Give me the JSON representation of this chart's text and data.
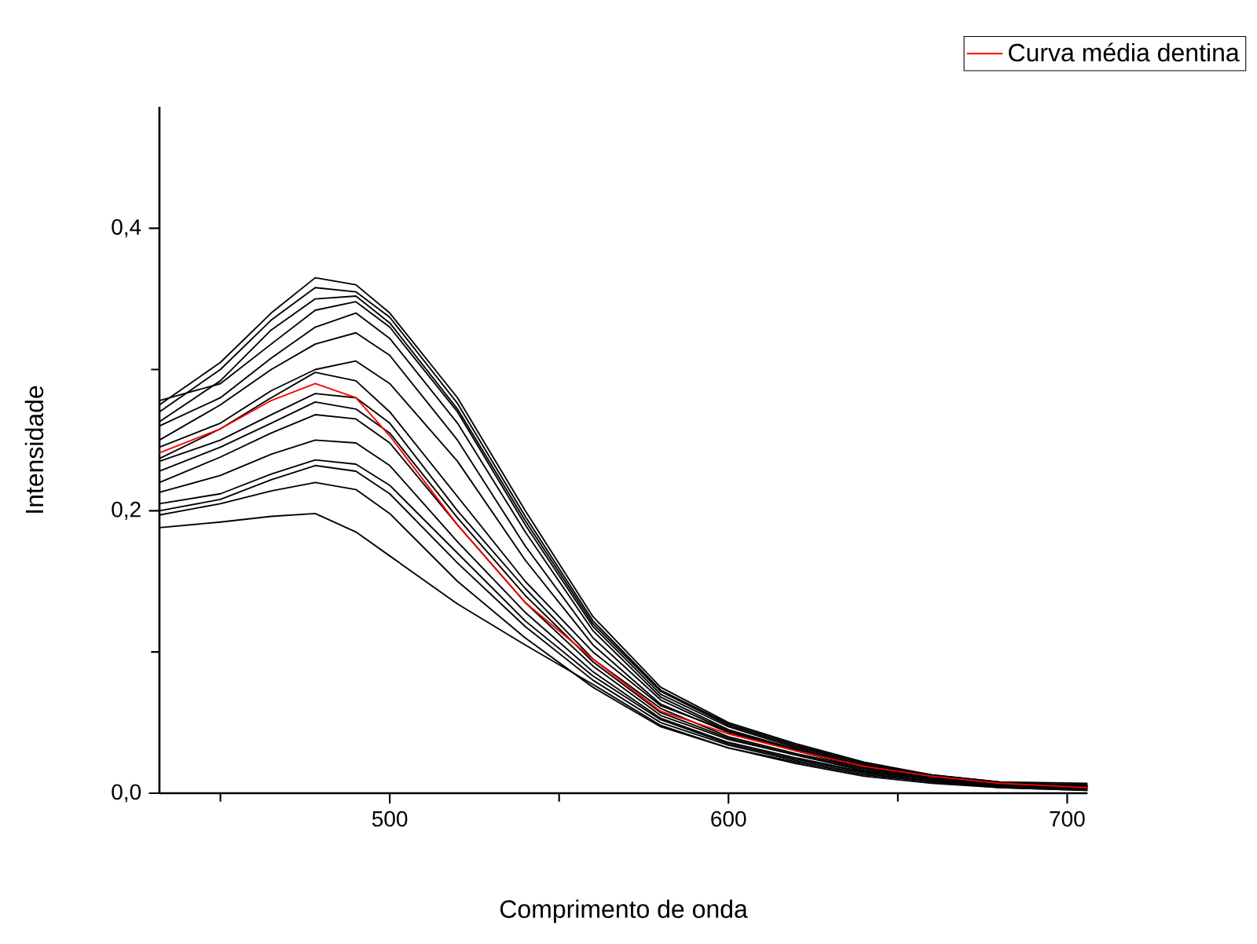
{
  "chart_data": {
    "type": "line",
    "xlabel": "Comprimento de onda",
    "ylabel": "Intensidade",
    "x": [
      432,
      450,
      465,
      478,
      490,
      500,
      520,
      540,
      560,
      580,
      600,
      620,
      640,
      660,
      680,
      706
    ],
    "xlim": [
      432,
      706
    ],
    "ylim": [
      0,
      0.486
    ],
    "xticks": [
      {
        "value": 450,
        "label": null
      },
      500,
      {
        "value": 550,
        "label": null
      },
      600,
      {
        "value": 650,
        "label": null
      },
      700
    ],
    "yticks": [
      {
        "value": 0,
        "label": "0,0"
      },
      {
        "value": 0.1,
        "label": null
      },
      {
        "value": 0.2,
        "label": "0,2"
      },
      {
        "value": 0.3,
        "label": null
      },
      {
        "value": 0.4,
        "label": "0,4"
      }
    ],
    "legend": "top right",
    "marker": "none",
    "line_style": "solid",
    "series": [
      {
        "color": "#000000",
        "values": [
          0.275,
          0.305,
          0.34,
          0.365,
          0.36,
          0.34,
          0.28,
          0.2,
          0.125,
          0.075,
          0.05,
          0.035,
          0.022,
          0.013,
          0.008,
          0.007
        ]
      },
      {
        "color": "#000000",
        "values": [
          0.27,
          0.3,
          0.335,
          0.358,
          0.355,
          0.337,
          0.276,
          0.196,
          0.122,
          0.073,
          0.049,
          0.034,
          0.021,
          0.013,
          0.008,
          0.005
        ]
      },
      {
        "color": "#000000",
        "values": [
          0.263,
          0.292,
          0.328,
          0.35,
          0.352,
          0.333,
          0.272,
          0.193,
          0.12,
          0.072,
          0.048,
          0.033,
          0.021,
          0.012,
          0.007,
          0.006
        ]
      },
      {
        "color": "#000000",
        "values": [
          0.278,
          0.29,
          0.318,
          0.342,
          0.348,
          0.33,
          0.27,
          0.19,
          0.118,
          0.07,
          0.047,
          0.032,
          0.02,
          0.012,
          0.007,
          0.004
        ]
      },
      {
        "color": "#000000",
        "values": [
          0.26,
          0.28,
          0.308,
          0.33,
          0.34,
          0.322,
          0.262,
          0.185,
          0.115,
          0.068,
          0.045,
          0.031,
          0.019,
          0.011,
          0.007,
          0.005
        ]
      },
      {
        "color": "#000000",
        "values": [
          0.25,
          0.275,
          0.3,
          0.318,
          0.326,
          0.31,
          0.25,
          0.175,
          0.11,
          0.066,
          0.044,
          0.03,
          0.019,
          0.011,
          0.006,
          0.004
        ]
      },
      {
        "color": "#000000",
        "values": [
          0.245,
          0.262,
          0.285,
          0.3,
          0.306,
          0.29,
          0.235,
          0.165,
          0.105,
          0.063,
          0.043,
          0.03,
          0.018,
          0.011,
          0.006,
          0.005
        ]
      },
      {
        "color": "#000000",
        "values": [
          0.237,
          0.258,
          0.28,
          0.298,
          0.292,
          0.27,
          0.21,
          0.15,
          0.1,
          0.062,
          0.044,
          0.031,
          0.019,
          0.011,
          0.007,
          0.006
        ]
      },
      {
        "color": "#000000",
        "values": [
          0.235,
          0.25,
          0.268,
          0.283,
          0.28,
          0.262,
          0.2,
          0.145,
          0.095,
          0.06,
          0.04,
          0.028,
          0.018,
          0.01,
          0.005,
          0.003
        ]
      },
      {
        "color": "#000000",
        "values": [
          0.228,
          0.245,
          0.262,
          0.277,
          0.272,
          0.255,
          0.195,
          0.14,
          0.093,
          0.057,
          0.039,
          0.027,
          0.017,
          0.01,
          0.006,
          0.004
        ]
      },
      {
        "color": "#000000",
        "values": [
          0.22,
          0.238,
          0.255,
          0.268,
          0.265,
          0.248,
          0.19,
          0.135,
          0.09,
          0.055,
          0.038,
          0.027,
          0.016,
          0.01,
          0.006,
          0.005
        ]
      },
      {
        "color": "#000000",
        "values": [
          0.213,
          0.225,
          0.24,
          0.25,
          0.248,
          0.232,
          0.178,
          0.128,
          0.086,
          0.053,
          0.036,
          0.025,
          0.015,
          0.009,
          0.005,
          0.003
        ]
      },
      {
        "color": "#000000",
        "values": [
          0.205,
          0.212,
          0.226,
          0.236,
          0.233,
          0.218,
          0.17,
          0.122,
          0.083,
          0.052,
          0.035,
          0.024,
          0.015,
          0.009,
          0.005,
          0.004
        ]
      },
      {
        "color": "#000000",
        "values": [
          0.2,
          0.208,
          0.222,
          0.232,
          0.228,
          0.212,
          0.163,
          0.118,
          0.08,
          0.05,
          0.034,
          0.023,
          0.014,
          0.008,
          0.004,
          0.002
        ]
      },
      {
        "color": "#000000",
        "values": [
          0.197,
          0.205,
          0.214,
          0.22,
          0.215,
          0.198,
          0.15,
          0.11,
          0.075,
          0.047,
          0.032,
          0.022,
          0.013,
          0.008,
          0.005,
          0.004
        ]
      },
      {
        "color": "#000000",
        "values": [
          0.188,
          0.192,
          0.196,
          0.198,
          0.185,
          0.168,
          0.134,
          0.105,
          0.077,
          0.048,
          0.032,
          0.021,
          0.012,
          0.007,
          0.004,
          0.002
        ]
      },
      {
        "name": "Curva média dentina",
        "color": "#ff0000",
        "values": [
          0.241,
          0.258,
          0.278,
          0.29,
          0.28,
          0.253,
          0.19,
          0.135,
          0.095,
          0.058,
          0.042,
          0.03,
          0.019,
          0.012,
          0.007,
          0.004
        ]
      }
    ]
  }
}
